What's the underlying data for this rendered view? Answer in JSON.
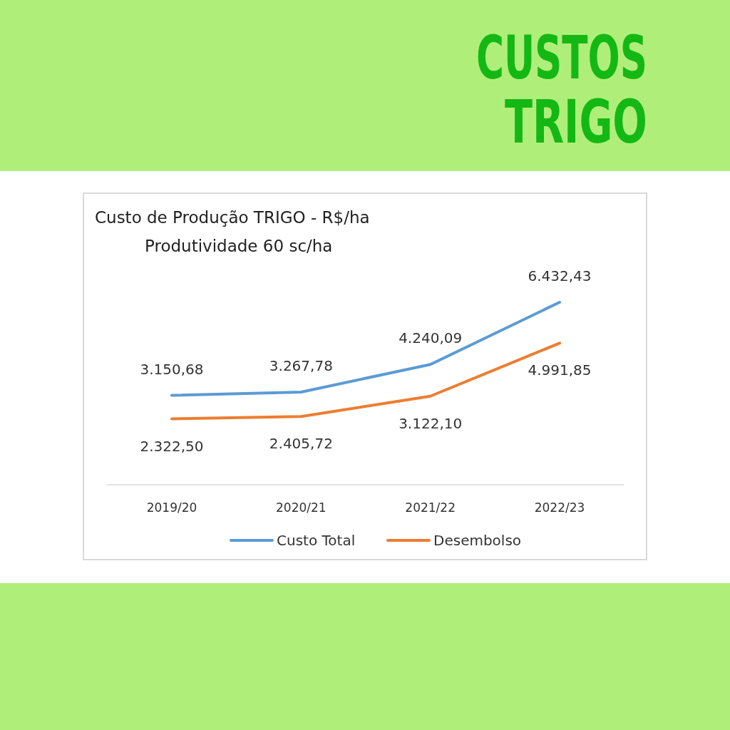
{
  "chart_data": {
    "type": "line",
    "title": "Custo de Produção TRIGO - R$/ha",
    "subtitle": "Produtividade 60 sc/ha",
    "annotations": [
      "CUSTOS TRIGO"
    ],
    "categories": [
      "2019/20",
      "2020/21",
      "2021/22",
      "2022/23"
    ],
    "series": [
      {
        "name": "Custo Total",
        "color": "#5b9bd5",
        "values": [
          3150.68,
          3267.78,
          4240.09,
          6432.43
        ],
        "value_labels": [
          "3.150,68",
          "3.267,78",
          "4.240,09",
          "6.432,43"
        ]
      },
      {
        "name": "Desembolso",
        "color": "#ed7d31",
        "values": [
          2322.5,
          2405.72,
          3122.1,
          4991.85
        ],
        "value_labels": [
          "2.322,50",
          "2.405,72",
          "3.122,10",
          "4.991,85"
        ]
      }
    ],
    "relative": false,
    "legend": "bottom",
    "grid": false,
    "marker": "none",
    "line_style": "solid"
  }
}
